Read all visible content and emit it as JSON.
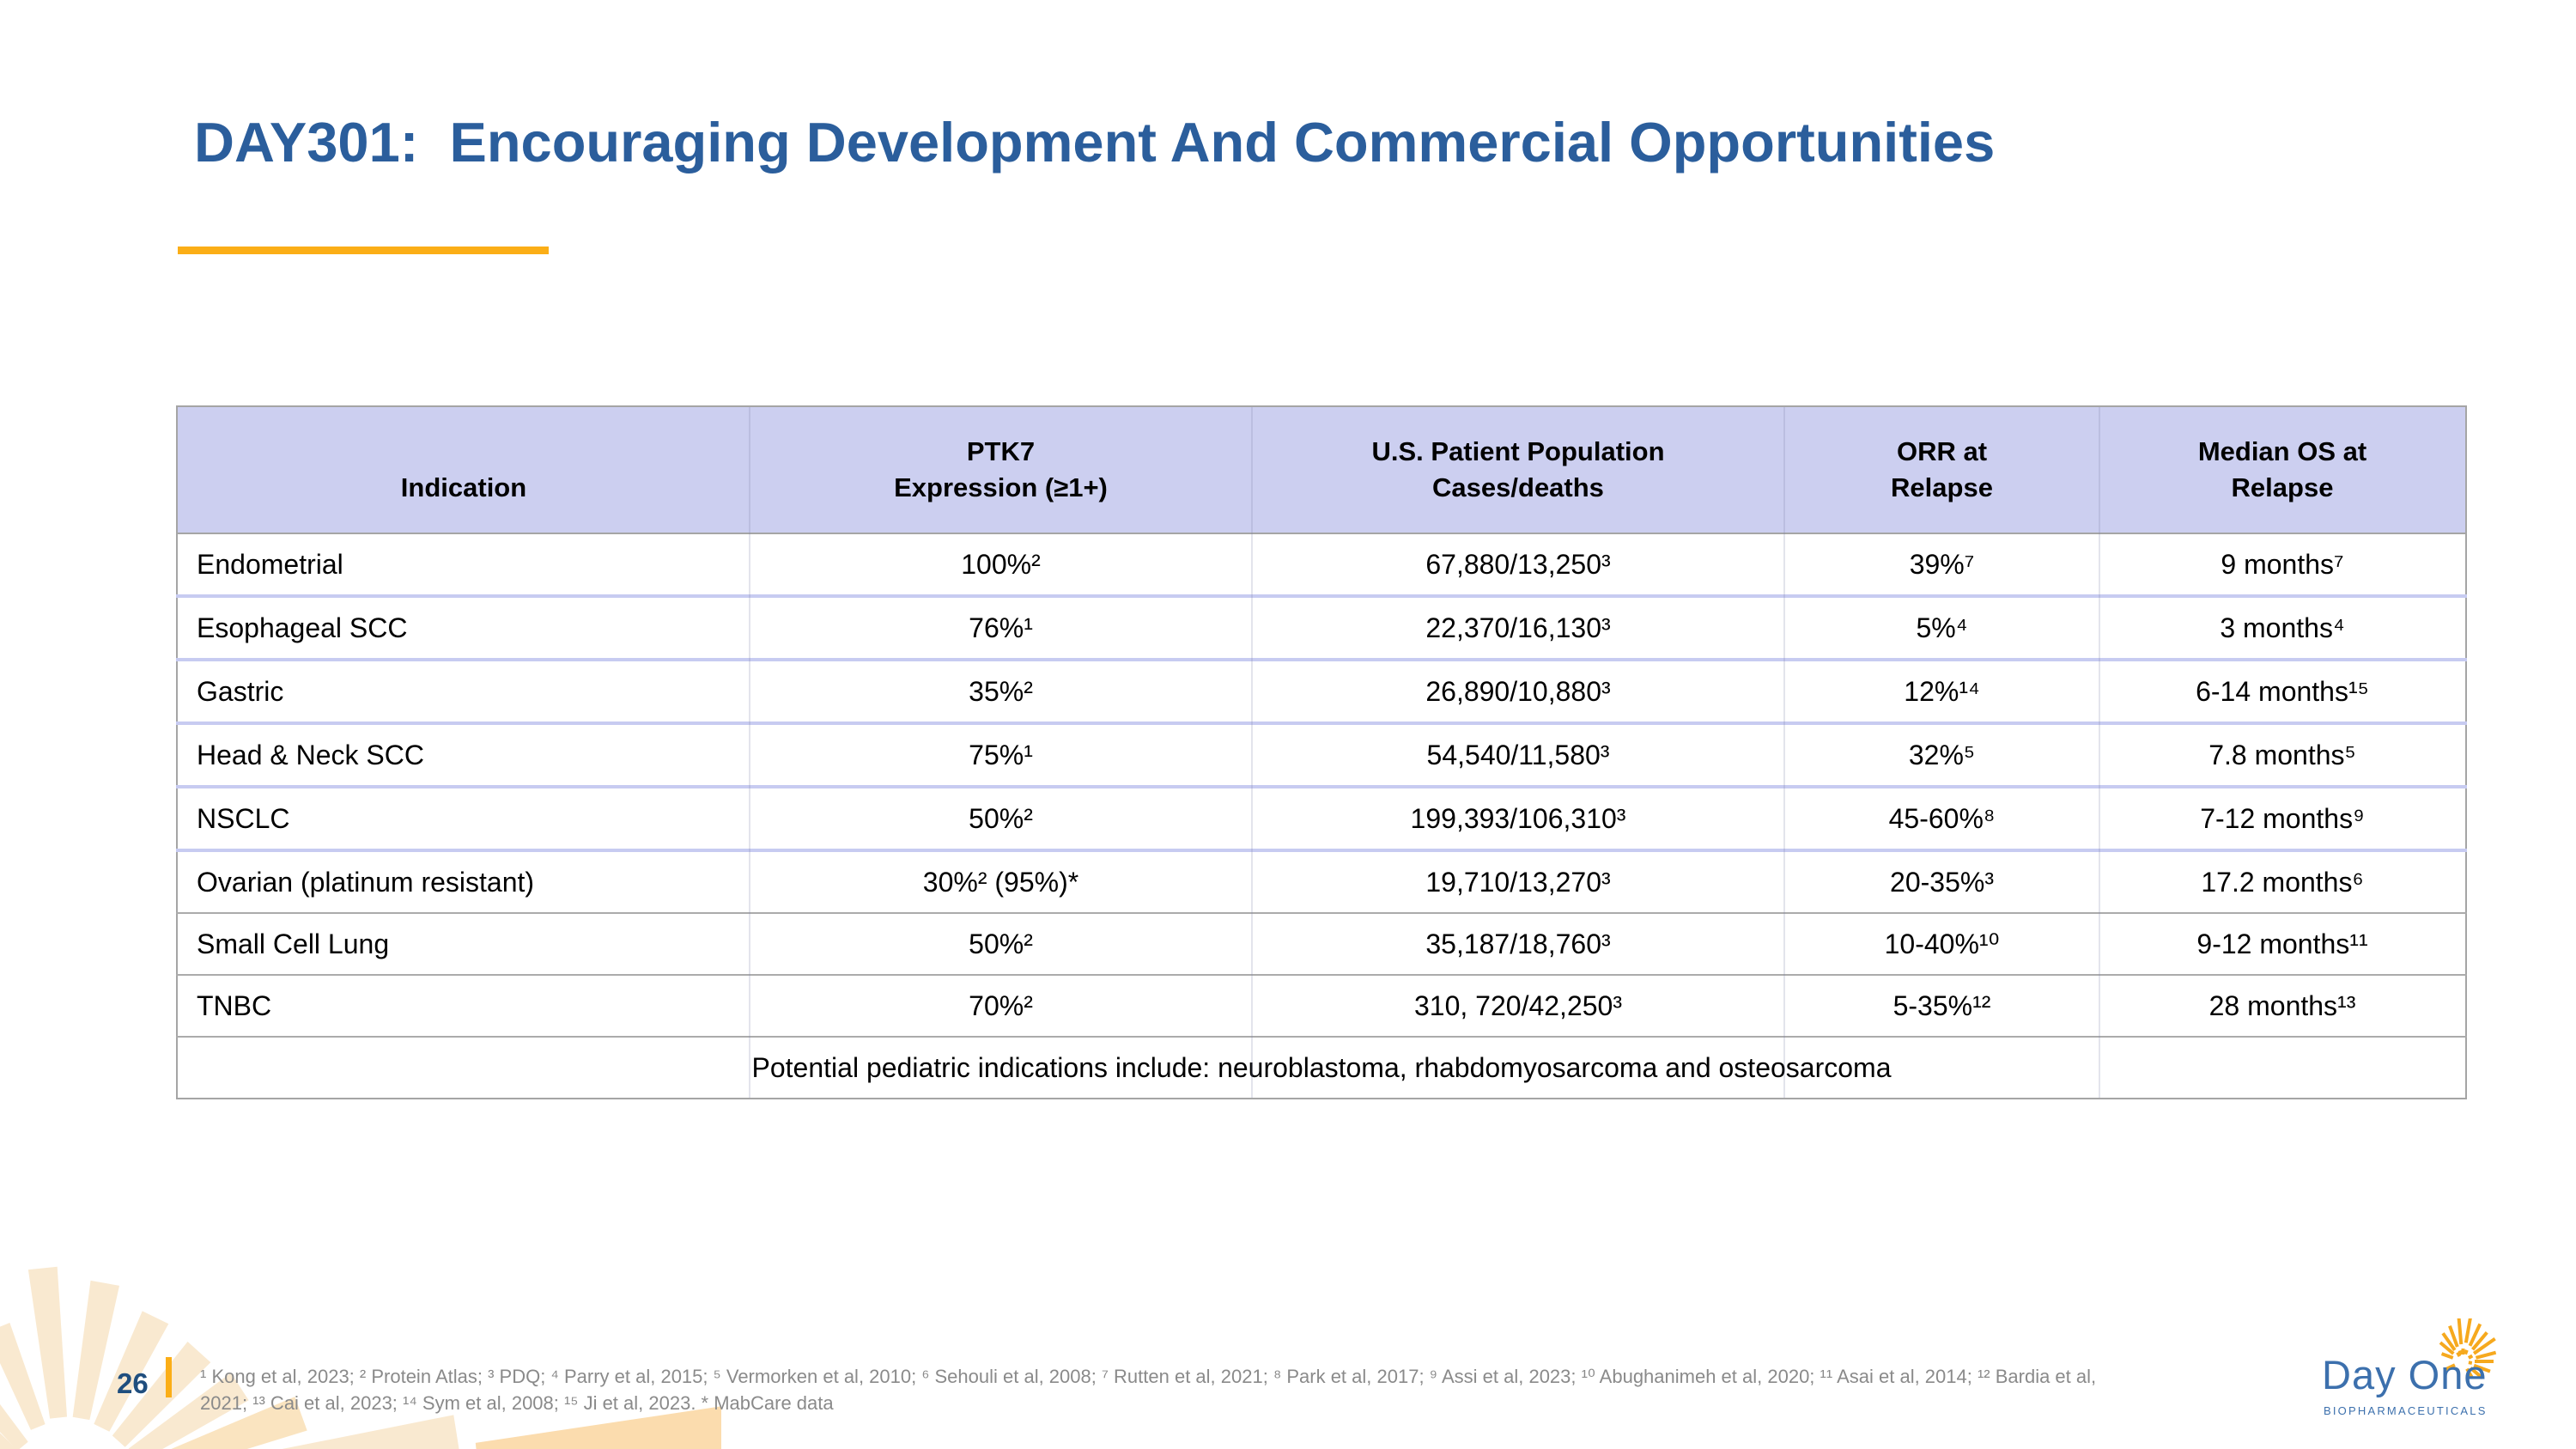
{
  "slide": {
    "title": "DAY301:  Encouraging Development And Commercial Opportunities",
    "page_number": "26"
  },
  "colors": {
    "title_blue": "#2B5E9C",
    "accent_gold": "#FBAE17",
    "table_header_bg": "#CCCFF0",
    "row_divider_lavender": "#C7CBF1",
    "row_divider_gray": "#ABABAB",
    "footnote_gray": "#8A8A8A",
    "logo_blue": "#3C70AD",
    "logo_gold": "#F6A91E",
    "corner_rays_cream": "#F9E9D0"
  },
  "table": {
    "headers": [
      {
        "line1": "",
        "line2": "Indication"
      },
      {
        "line1": "PTK7",
        "line2": "Expression (≥1+)"
      },
      {
        "line1": "U.S. Patient Population",
        "line2": "Cases/deaths"
      },
      {
        "line1": "ORR at",
        "line2": "Relapse"
      },
      {
        "line1": "Median OS at",
        "line2": "Relapse"
      }
    ],
    "rows": [
      [
        "Endometrial",
        "100%²",
        "67,880/13,250³",
        "39%⁷",
        "9 months⁷"
      ],
      [
        "Esophageal SCC",
        "76%¹",
        "22,370/16,130³",
        "5%⁴",
        "3 months⁴"
      ],
      [
        "Gastric",
        "35%²",
        "26,890/10,880³",
        "12%¹⁴",
        "6-14 months¹⁵"
      ],
      [
        "Head & Neck SCC",
        "75%¹",
        "54,540/11,580³",
        "32%⁵",
        "7.8 months⁵"
      ],
      [
        "NSCLC",
        "50%²",
        "199,393/106,310³",
        "45-60%⁸",
        "7-12 months⁹"
      ],
      [
        "Ovarian (platinum resistant)",
        "30%² (95%)*",
        "19,710/13,270³",
        "20-35%³",
        "17.2 months⁶"
      ],
      [
        "Small Cell Lung",
        "50%²",
        "35,187/18,760³",
        "10-40%¹⁰",
        "9-12 months¹¹"
      ],
      [
        "TNBC",
        "70%²",
        "310, 720/42,250³",
        "5-35%¹²",
        "28 months¹³"
      ]
    ],
    "footer_note": "Potential pediatric indications include: neuroblastoma, rhabdomyosarcoma and osteosarcoma"
  },
  "footnotes": {
    "line1": "¹ Kong et al, 2023; ² Protein Atlas; ³ PDQ; ⁴ Parry et al, 2015; ⁵ Vermorken et al, 2010; ⁶ Sehouli et al, 2008; ⁷ Rutten et al, 2021; ⁸ Park et al, 2017; ⁹ Assi et al, 2023; ¹⁰ Abughanimeh et al, 2020; ¹¹ Asai et al, 2014; ¹² Bardia et al,",
    "line2": "2021; ¹³ Cai et al, 2023; ¹⁴ Sym et al, 2008; ¹⁵ Ji et al, 2023. * MabCare data"
  },
  "logo": {
    "wordmark": "Day One",
    "subtitle": "BIOPHARMACEUTICALS"
  }
}
